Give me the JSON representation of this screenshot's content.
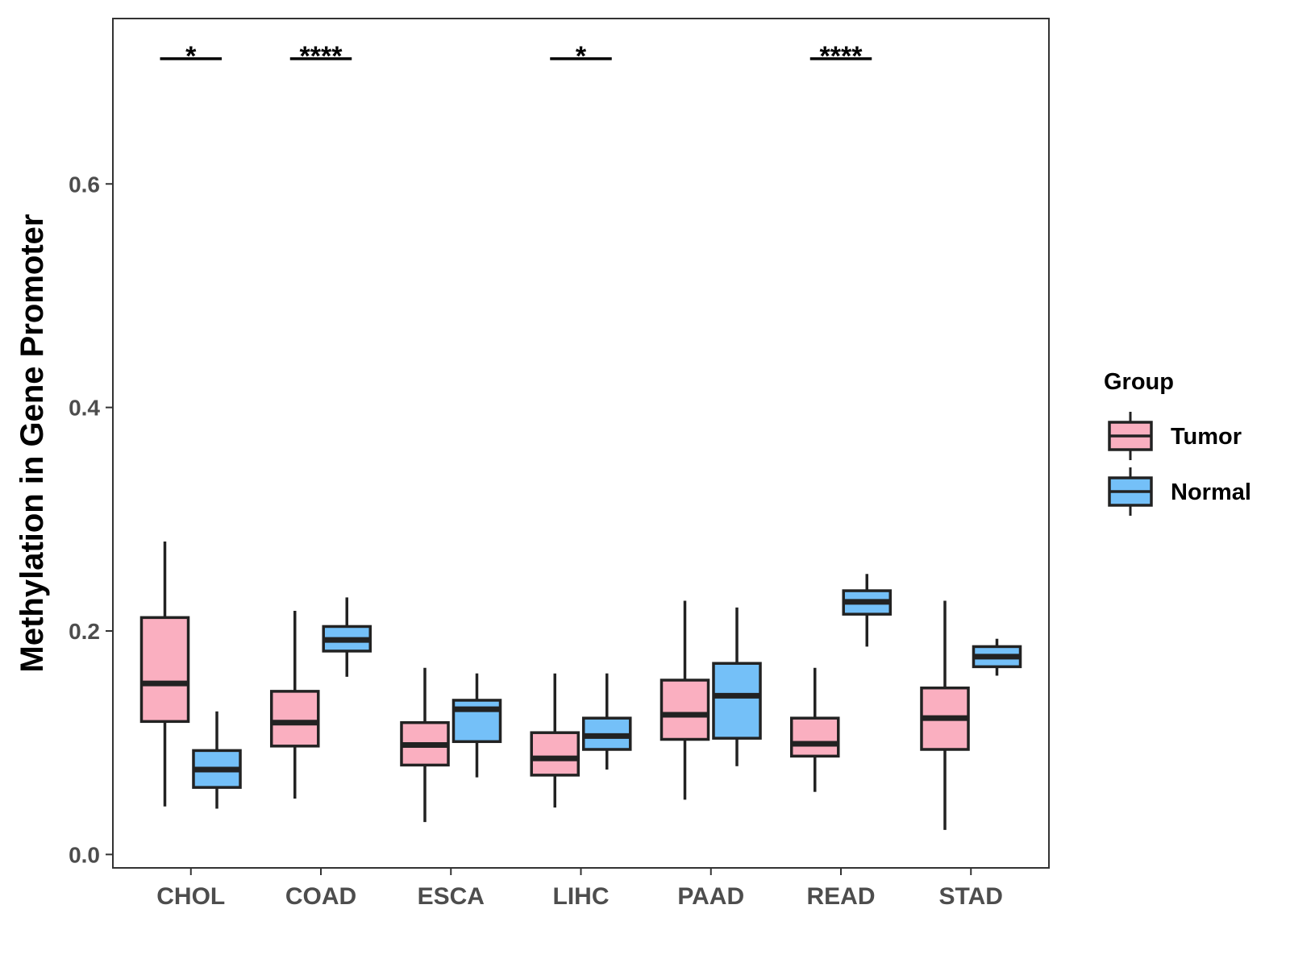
{
  "chart_data": {
    "type": "box",
    "title": "",
    "xlabel": "",
    "ylabel": "Methylation in Gene Promoter",
    "ylim": [
      -0.012,
      0.748
    ],
    "yticks": [
      0.0,
      0.2,
      0.4,
      0.6
    ],
    "ytick_labels": [
      "0.0",
      "0.2",
      "0.4",
      "0.6"
    ],
    "grid": false,
    "legend": {
      "title": "Group",
      "position": "right",
      "entries": [
        {
          "label": "Tumor",
          "color": "#FAAFC0"
        },
        {
          "label": "Normal",
          "color": "#74C0F8"
        }
      ]
    },
    "categories": [
      "CHOL",
      "COAD",
      "ESCA",
      "LIHC",
      "PAAD",
      "READ",
      "STAD"
    ],
    "series": [
      {
        "name": "Tumor",
        "color": "#FAAFC0",
        "boxes": [
          {
            "min": 0.043,
            "q1": 0.119,
            "median": 0.153,
            "q3": 0.212,
            "max": 0.28
          },
          {
            "min": 0.05,
            "q1": 0.097,
            "median": 0.118,
            "q3": 0.146,
            "max": 0.218
          },
          {
            "min": 0.029,
            "q1": 0.08,
            "median": 0.098,
            "q3": 0.118,
            "max": 0.167
          },
          {
            "min": 0.042,
            "q1": 0.071,
            "median": 0.086,
            "q3": 0.109,
            "max": 0.162
          },
          {
            "min": 0.049,
            "q1": 0.103,
            "median": 0.125,
            "q3": 0.156,
            "max": 0.227
          },
          {
            "min": 0.056,
            "q1": 0.088,
            "median": 0.099,
            "q3": 0.122,
            "max": 0.167
          },
          {
            "min": 0.022,
            "q1": 0.094,
            "median": 0.122,
            "q3": 0.149,
            "max": 0.227
          }
        ]
      },
      {
        "name": "Normal",
        "color": "#74C0F8",
        "boxes": [
          {
            "min": 0.041,
            "q1": 0.06,
            "median": 0.076,
            "q3": 0.093,
            "max": 0.128
          },
          {
            "min": 0.159,
            "q1": 0.182,
            "median": 0.192,
            "q3": 0.204,
            "max": 0.23
          },
          {
            "min": 0.069,
            "q1": 0.101,
            "median": 0.13,
            "q3": 0.138,
            "max": 0.162
          },
          {
            "min": 0.076,
            "q1": 0.094,
            "median": 0.106,
            "q3": 0.122,
            "max": 0.162
          },
          {
            "min": 0.079,
            "q1": 0.104,
            "median": 0.142,
            "q3": 0.171,
            "max": 0.221
          },
          {
            "min": 0.186,
            "q1": 0.215,
            "median": 0.226,
            "q3": 0.236,
            "max": 0.251
          },
          {
            "min": 0.16,
            "q1": 0.168,
            "median": 0.177,
            "q3": 0.186,
            "max": 0.193
          }
        ]
      }
    ],
    "significance": [
      {
        "category": "CHOL",
        "label": "*",
        "y": 0.712
      },
      {
        "category": "COAD",
        "label": "****",
        "y": 0.712
      },
      {
        "category": "LIHC",
        "label": "*",
        "y": 0.712
      },
      {
        "category": "READ",
        "label": "****",
        "y": 0.712
      }
    ]
  }
}
